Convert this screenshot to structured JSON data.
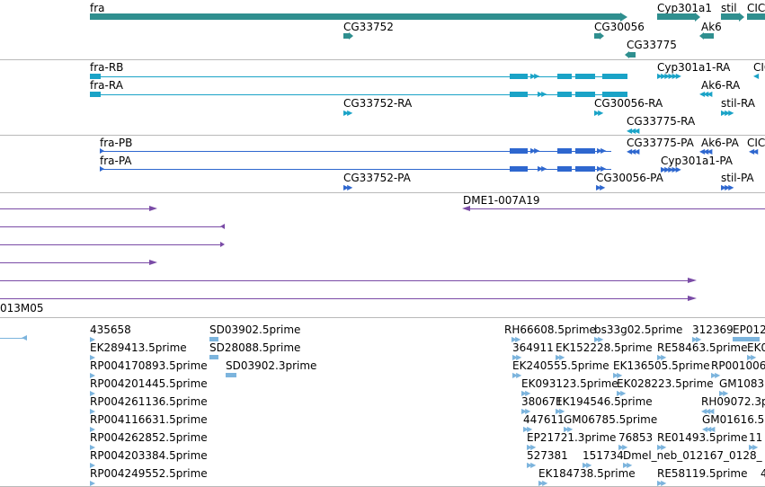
{
  "colors": {
    "gene": "#2f8f8f",
    "transcript": "#1aa3c7",
    "protein": "#2e67cf",
    "clone": "#7a4ba6",
    "est": "#7cb4dd",
    "divider": "#b9b9b9"
  },
  "genes": {
    "labels": [
      "fra",
      "Cyp301a1",
      "stil",
      "CIC",
      "CG33752",
      "CG30056",
      "Ak6",
      "CG33775"
    ]
  },
  "transcripts": {
    "labels": [
      "fra-RB",
      "fra-RA",
      "Cyp301a1-RA",
      "Ak6-RA",
      "CG33752-RA",
      "CG30056-RA",
      "stil-RA",
      "CG33775-RA",
      "CIC"
    ]
  },
  "proteins": {
    "labels": [
      "fra-PB",
      "fra-PA",
      "CG33775-PA",
      "Ak6-PA",
      "CIC",
      "Cyp301a1-PA",
      "CG33752-PA",
      "CG30056-PA",
      "stil-PA"
    ]
  },
  "clones": {
    "labels": [
      "DME1-007A19",
      "013M05"
    ]
  },
  "ests": {
    "labels": [
      "435658",
      "SD03902.5prime",
      "RH66608.5prime",
      "bs33g02.5prime",
      "312369",
      "EP012",
      "EK289413.5prime",
      "SD28088.5prime",
      "364911",
      "EK152228.5prime",
      "RE58463.5prime",
      "EK0",
      "RP004170893.5prime",
      "SD03902.3prime",
      "EK240555.5prime",
      "EK136505.5prime",
      "RP001006",
      "RP004201445.5prime",
      "EK093123.5prime",
      "EK028223.5prime",
      "GM1083",
      "RP004261136.5prime",
      "380671",
      "EK194546.5prime",
      "RH09072.3p",
      "RP004116631.5prime",
      "447611",
      "GM06785.5prime",
      "GM01616.5",
      "RP004262852.5prime",
      "EP21721.3prime",
      "76853",
      "RE01493.5prime",
      "11",
      "RP004203384.5prime",
      "527381",
      "151734",
      "Dmel_neb_012167_0128_",
      "RP004249552.5prime",
      "EK184738.5prime",
      "RE58119.5prime",
      "4"
    ]
  }
}
